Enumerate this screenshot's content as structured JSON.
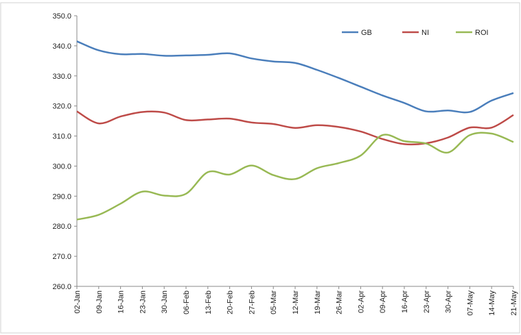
{
  "chart_data": {
    "type": "line",
    "categories": [
      "02-Jan",
      "09-Jan",
      "16-Jan",
      "23-Jan",
      "30-Jan",
      "06-Feb",
      "13-Feb",
      "20-Feb",
      "27-Feb",
      "05-Mar",
      "12-Mar",
      "19-Mar",
      "26-Mar",
      "02-Apr",
      "09-Apr",
      "16-Apr",
      "23-Apr",
      "30-Apr",
      "07-May",
      "14-May",
      "21-May"
    ],
    "series": [
      {
        "name": "GB",
        "color": "#4a7ebb",
        "values": [
          341.5,
          338.5,
          337.2,
          337.3,
          336.7,
          336.8,
          337,
          337.5,
          335.8,
          334.8,
          334.3,
          332,
          329.3,
          326.4,
          323.5,
          321,
          318.2,
          318.5,
          318,
          321.8,
          324.3
        ]
      },
      {
        "name": "NI",
        "color": "#be4b48",
        "values": [
          318.2,
          314.2,
          316.5,
          318,
          317.8,
          315.3,
          315.5,
          315.8,
          314.5,
          314,
          312.7,
          313.6,
          313,
          311.5,
          309,
          307.3,
          307.6,
          309.5,
          312.8,
          312.8,
          317
        ]
      },
      {
        "name": "ROI",
        "color": "#98b954",
        "values": [
          282.2,
          283.8,
          287.5,
          291.5,
          290.2,
          290.8,
          298,
          297.2,
          300.2,
          297,
          295.7,
          299.3,
          301,
          303.5,
          310.3,
          308.3,
          307.5,
          304.5,
          310.3,
          310.8,
          308
        ]
      }
    ],
    "ylim": [
      260,
      350
    ],
    "yticks": [
      {
        "value": 260,
        "label": "260.0"
      },
      {
        "value": 270,
        "label": "270.0"
      },
      {
        "value": 280,
        "label": "280.0"
      },
      {
        "value": 290,
        "label": "290.0"
      },
      {
        "value": 300,
        "label": "300.0"
      },
      {
        "value": 310,
        "label": "310.0"
      },
      {
        "value": 320,
        "label": "320.0"
      },
      {
        "value": 330,
        "label": "330.0"
      },
      {
        "value": 340,
        "label": "340.0"
      },
      {
        "value": 350,
        "label": "350.0"
      }
    ],
    "legend": "top-right"
  }
}
